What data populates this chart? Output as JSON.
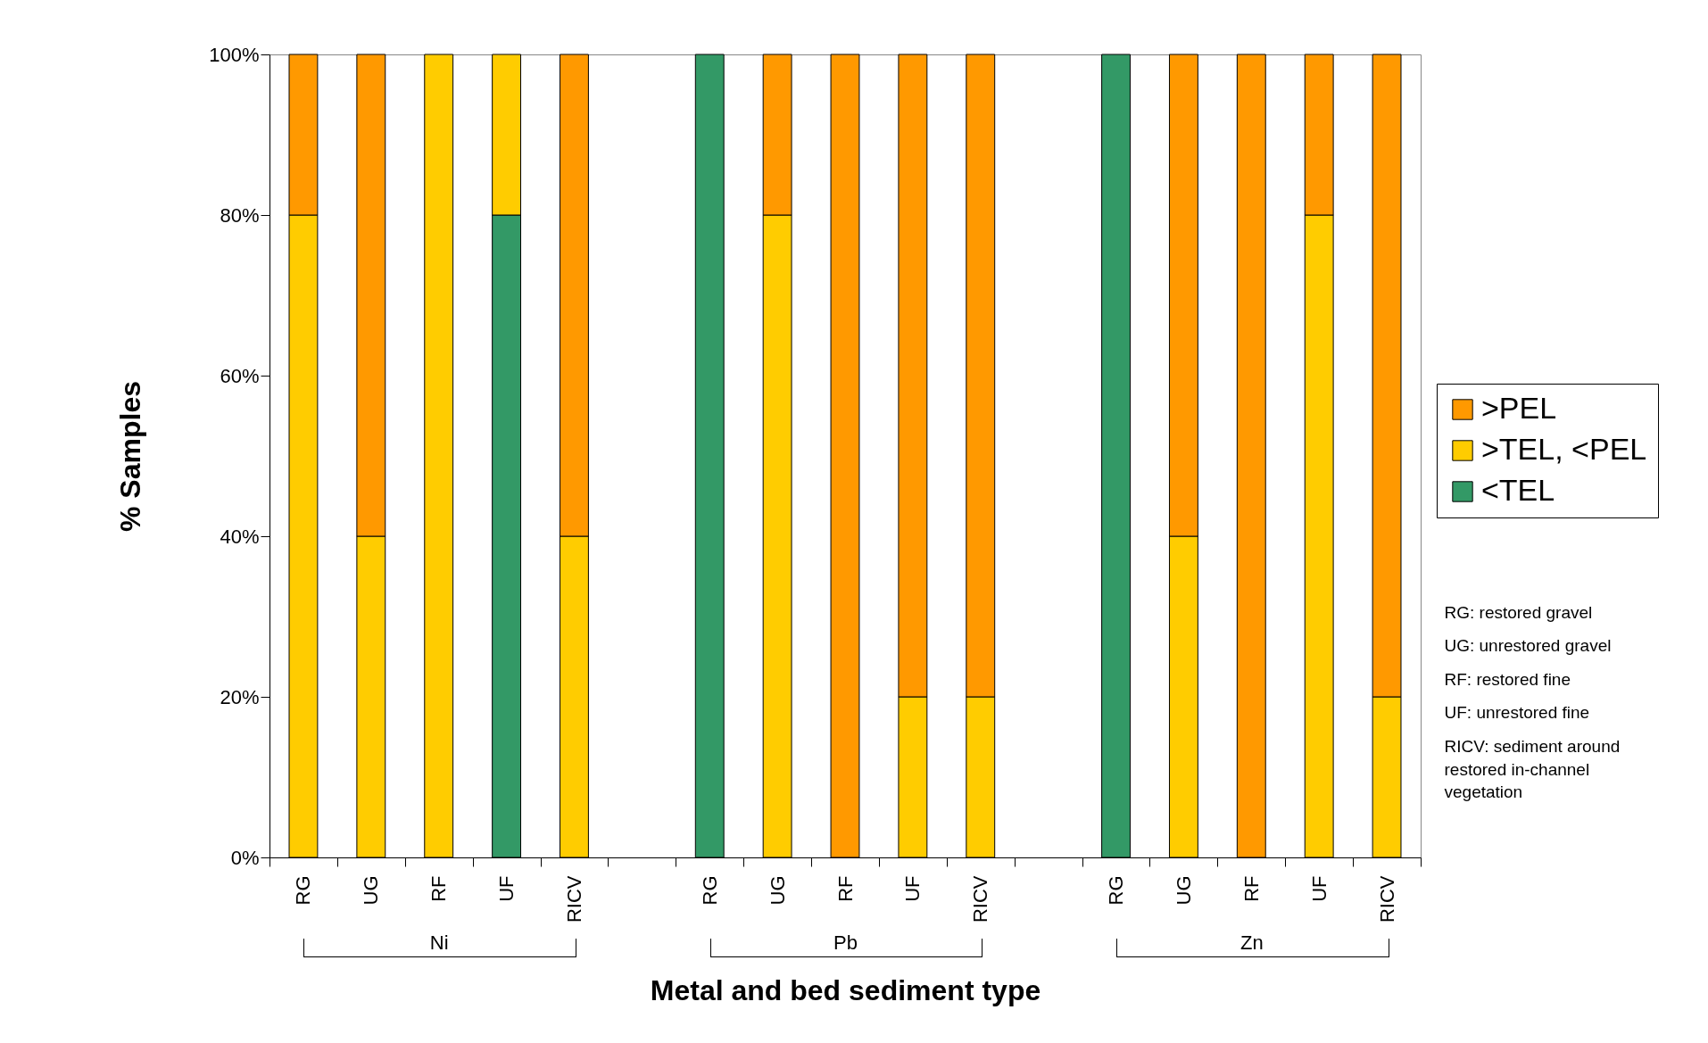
{
  "chart_data": {
    "type": "bar",
    "stacked": true,
    "xlabel": "Metal and bed sediment type",
    "ylabel": "% Samples",
    "categories": [
      "RG",
      "UG",
      "RF",
      "UF",
      "RICV",
      null,
      "RG",
      "UG",
      "RF",
      "UF",
      "RICV",
      null,
      "RG",
      "UG",
      "RF",
      "UF",
      "RICV"
    ],
    "series": [
      {
        "name": "<TEL",
        "color": "#339966",
        "values": [
          0,
          0,
          0,
          80,
          0,
          null,
          100,
          0,
          0,
          0,
          0,
          null,
          100,
          0,
          0,
          0,
          0
        ]
      },
      {
        "name": ">TEL, <PEL",
        "color": "#ffcc00",
        "values": [
          80,
          40,
          100,
          20,
          40,
          null,
          0,
          80,
          0,
          20,
          20,
          null,
          0,
          40,
          0,
          80,
          20
        ]
      },
      {
        "name": ">PEL",
        "color": "#ff9900",
        "values": [
          20,
          60,
          0,
          0,
          60,
          null,
          0,
          20,
          100,
          80,
          80,
          null,
          0,
          60,
          100,
          20,
          80
        ]
      }
    ],
    "ylim": [
      0,
      100
    ],
    "yticks": [
      {
        "value": 0,
        "label": "0%"
      },
      {
        "value": 20,
        "label": "20%"
      },
      {
        "value": 40,
        "label": "40%"
      },
      {
        "value": 60,
        "label": "60%"
      },
      {
        "value": 80,
        "label": "80%"
      },
      {
        "value": 100,
        "label": "100%"
      }
    ],
    "grid": false,
    "legend": "right",
    "annotations": [
      "Ni",
      "Pb",
      "Zn",
      "RG: restored gravel",
      "UG: unrestored gravel",
      "RF: restored fine",
      "UF: unrestored fine",
      "RICV: sediment around restored in-channel vegetation"
    ]
  }
}
